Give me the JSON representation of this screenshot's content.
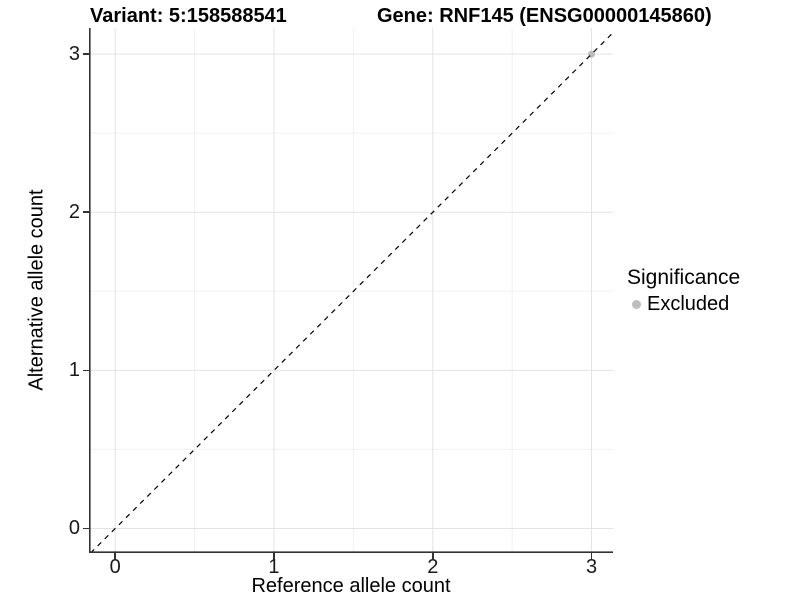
{
  "header": {
    "title_variant": "Variant: 5:158588541",
    "title_gene": "Gene: RNF145 (ENSG00000145860)"
  },
  "axes": {
    "x_title": "Reference allele count",
    "y_title": "Alternative allele count",
    "x_tick_labels": [
      "0",
      "1",
      "2",
      "3"
    ],
    "y_tick_labels": [
      "0",
      "1",
      "2",
      "3"
    ]
  },
  "legend": {
    "title": "Significance",
    "items": [
      {
        "label": "Excluded",
        "color": "#bdbdbd",
        "marker": "circle-icon"
      }
    ]
  },
  "colors": {
    "background": "#ffffff",
    "grid_major": "#e3e3e3",
    "grid_minor": "#f1f1f1",
    "axis_line": "#333333",
    "identity_line": "#000000",
    "excluded_point": "#bdbdbd"
  },
  "chart_data": {
    "type": "scatter",
    "title": "Variant: 5:158588541 | Gene: RNF145 (ENSG00000145860)",
    "xlabel": "Reference allele count",
    "ylabel": "Alternative allele count",
    "xlim": [
      -0.165,
      3.135
    ],
    "ylim": [
      -0.155,
      3.165
    ],
    "x_ticks": [
      0,
      1,
      2,
      3
    ],
    "y_ticks": [
      0,
      1,
      2,
      3
    ],
    "x_minor_ticks": [
      0.5,
      1.5,
      2.5
    ],
    "y_minor_ticks": [
      0.5,
      1.5,
      2.5
    ],
    "grid": true,
    "legend_position": "right",
    "reference_line": {
      "type": "identity",
      "style": "dashed",
      "color": "#000000",
      "from": [
        -0.155,
        -0.155
      ],
      "to": [
        3.135,
        3.135
      ]
    },
    "series": [
      {
        "name": "Excluded",
        "color": "#bdbdbd",
        "points": [
          {
            "x": 3,
            "y": 3
          }
        ]
      }
    ]
  }
}
